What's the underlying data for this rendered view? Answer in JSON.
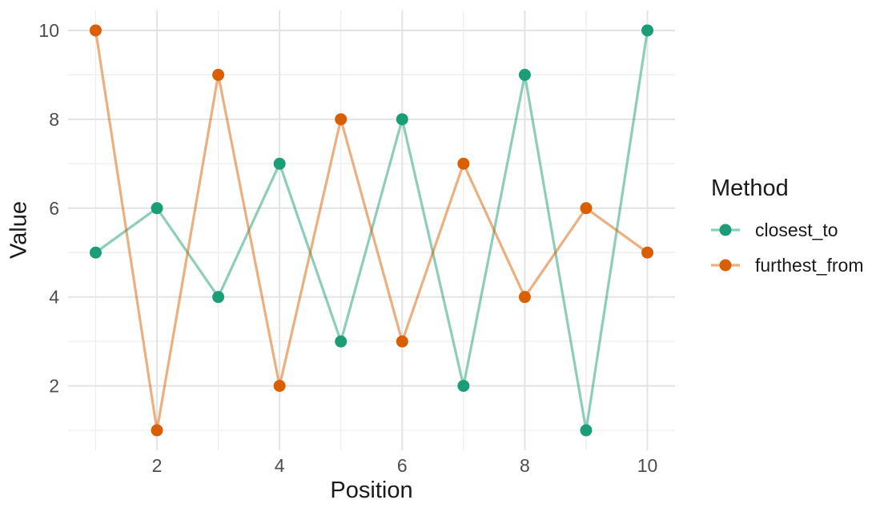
{
  "chart_data": {
    "type": "line",
    "title": "",
    "xlabel": "Position",
    "ylabel": "Value",
    "legend_title": "Method",
    "legend_position": "right",
    "x": [
      1,
      2,
      3,
      4,
      5,
      6,
      7,
      8,
      9,
      10
    ],
    "series": [
      {
        "name": "closest_to",
        "color": "#1B9E77",
        "values": [
          5,
          6,
          4,
          7,
          3,
          8,
          2,
          9,
          1,
          10
        ]
      },
      {
        "name": "furthest_from",
        "color": "#D95F02",
        "values": [
          10,
          1,
          9,
          2,
          8,
          3,
          7,
          4,
          6,
          5
        ]
      }
    ],
    "x_ticks": [
      2,
      4,
      6,
      8,
      10
    ],
    "y_ticks": [
      2,
      4,
      6,
      8,
      10
    ],
    "x_minor_ticks": [
      1,
      3,
      5,
      7,
      9
    ],
    "y_minor_ticks": [
      1,
      3,
      5,
      7,
      9
    ],
    "xlim": [
      0.55,
      10.45
    ],
    "ylim": [
      0.55,
      10.45
    ],
    "grid": true,
    "line_opacity": 0.5
  },
  "style": {
    "background": "#FFFFFF",
    "grid_major_color": "#E3E3E3",
    "grid_minor_color": "#EDEDED",
    "tick_label_color": "#4D4D4D",
    "axis_title_color": "#1A1A1A",
    "legend_text_color": "#1A1A1A"
  }
}
